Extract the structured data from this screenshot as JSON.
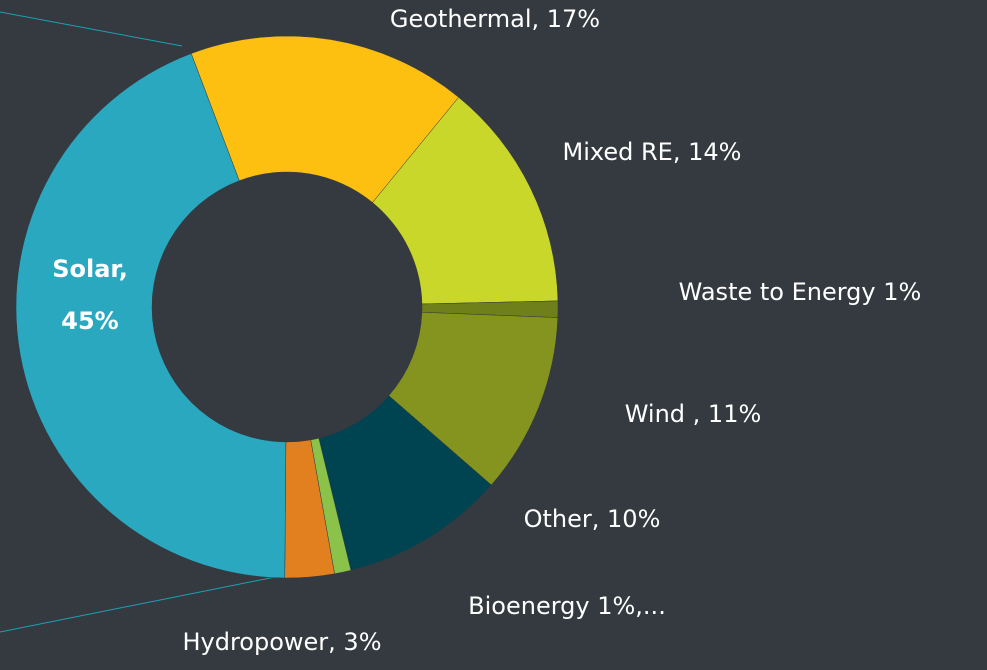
{
  "chart_data": {
    "type": "donut",
    "values": [
      17,
      14,
      1,
      11,
      10,
      1,
      3,
      45
    ],
    "value_labels": [
      "Geothermal, 17%",
      "Mixed RE, 14%",
      "Waste to Energy  1%",
      "Wind , 11%",
      "Other, 10%",
      "Bioenergy  1%,...",
      "Hydropower, 3%",
      "Solar, 45%"
    ],
    "colors": [
      "#fdc010",
      "#c9d72a",
      "#6f7f1a",
      "#84941e",
      "#004452",
      "#8bc34a",
      "#e28020",
      "#2aa8c0"
    ]
  }
}
